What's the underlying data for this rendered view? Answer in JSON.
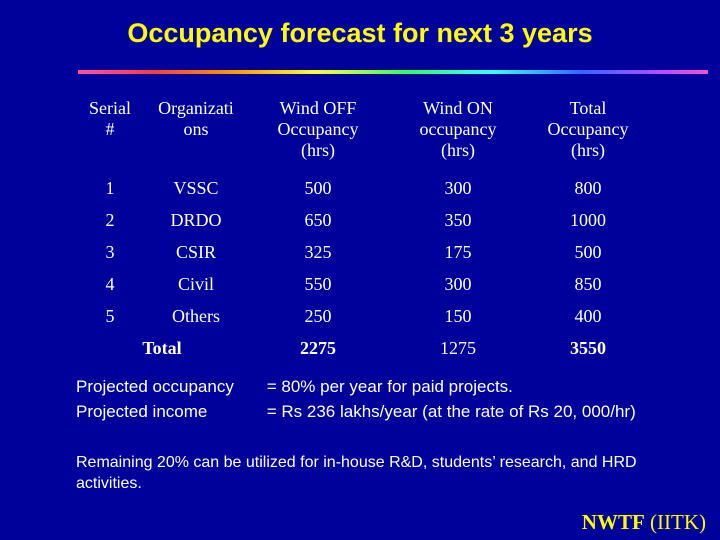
{
  "title": "Occupancy forecast for next 3 years",
  "table": {
    "headers": {
      "serial": [
        "Serial",
        "#"
      ],
      "org": [
        "Organizati",
        "ons"
      ],
      "wind_off": [
        "Wind OFF",
        "Occupancy",
        "(hrs)"
      ],
      "wind_on": [
        "Wind ON",
        "occupancy",
        "(hrs)"
      ],
      "total": [
        "Total",
        "Occupancy",
        "(hrs)"
      ]
    },
    "rows": [
      {
        "serial": "1",
        "org": "VSSC",
        "wind_off": "500",
        "wind_on": "300",
        "total": "800"
      },
      {
        "serial": "2",
        "org": "DRDO",
        "wind_off": "650",
        "wind_on": "350",
        "total": "1000"
      },
      {
        "serial": "3",
        "org": "CSIR",
        "wind_off": "325",
        "wind_on": "175",
        "total": "500"
      },
      {
        "serial": "4",
        "org": "Civil",
        "wind_off": "550",
        "wind_on": "300",
        "total": "850"
      },
      {
        "serial": "5",
        "org": "Others",
        "wind_off": "250",
        "wind_on": "150",
        "total": "400"
      }
    ],
    "total_row": {
      "label": "Total",
      "wind_off": "2275",
      "wind_on": "1275",
      "total": "3550"
    }
  },
  "projections": {
    "occupancy_label": "Projected occupancy",
    "occupancy_value": "= 80% per year for paid projects.",
    "income_label": "Projected income",
    "income_value": "= Rs 236 lakhs/year (at the rate of Rs 20, 000/hr)"
  },
  "remaining_note": "Remaining 20% can be utilized for in-house R&D, students’ research, and HRD activities.",
  "footer": {
    "org": "NWTF",
    "inst": "(IITK)"
  },
  "colors": {
    "background": "#00009a",
    "title": "#ffff00",
    "text": "#ffffff"
  }
}
